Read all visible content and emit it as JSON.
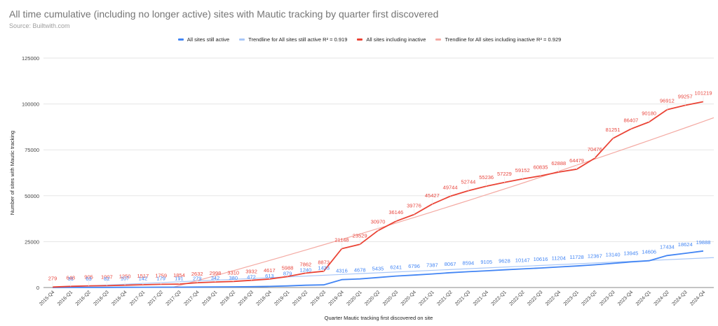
{
  "header": {
    "title": "All time cumulative (including no longer active) sites with Mautic tracking by quarter first discovered",
    "subtitle": "Source: Builtwith.com"
  },
  "legend": [
    {
      "label": "All sites still active",
      "color": "#4285f4"
    },
    {
      "label": "Trendline for All sites still active R² = 0.919",
      "color": "#a9c7f7"
    },
    {
      "label": "All sites including inactive",
      "color": "#ea4335"
    },
    {
      "label": "Trendline for All sites including inactive R² = 0.929",
      "color": "#f4aaa3"
    }
  ],
  "chart_data": {
    "type": "line",
    "title": "All time cumulative (including no longer active) sites with Mautic tracking by quarter first discovered",
    "subtitle": "Source: Builtwith.com",
    "xlabel": "Quarter Mautic tracking first discovered on site",
    "ylabel": "Number of sites with Mautic tracking",
    "ylim": [
      0,
      125000
    ],
    "yticks": [
      0,
      25000,
      50000,
      75000,
      100000,
      125000
    ],
    "grid": true,
    "legend_position": "top",
    "categories": [
      "2015-Q4",
      "2016-Q1",
      "2016-Q2",
      "2016-Q3",
      "2016-Q4",
      "2017-Q1",
      "2017-Q2",
      "2017-Q3",
      "2017-Q4",
      "2018-Q1",
      "2018-Q2",
      "2018-Q3",
      "2018-Q4",
      "2019-Q1",
      "2019-Q2",
      "2019-Q3",
      "2019-Q4",
      "2020-Q1",
      "2020-Q2",
      "2020-Q3",
      "2020-Q4",
      "2021-Q1",
      "2021-Q2",
      "2021-Q3",
      "2021-Q4",
      "2022-Q1",
      "2022-Q2",
      "2022-Q3",
      "2022-Q4",
      "2023-Q1",
      "2023-Q2",
      "2023-Q3",
      "2023-Q4",
      "2024-Q1",
      "2024-Q2",
      "2024-Q3",
      "2024-Q4"
    ],
    "series": [
      {
        "name": "All sites still active",
        "color": "#4285f4",
        "values": [
          9,
          31,
          63,
          82,
          107,
          142,
          179,
          191,
          279,
          342,
          380,
          472,
          613,
          879,
          1240,
          1433,
          4316,
          4678,
          5435,
          6241,
          6796,
          7387,
          8067,
          8594,
          9105,
          9628,
          10147,
          10616,
          11204,
          11728,
          12367,
          13140,
          13945,
          14606,
          17434,
          18624,
          19888
        ]
      },
      {
        "name": "Trendline for All sites still active",
        "r_squared": 0.919,
        "color": "#a9c7f7",
        "type": "linear-trend",
        "start_value": 0,
        "end_value": 16300,
        "extends_to": "right edge"
      },
      {
        "name": "All sites including inactive",
        "color": "#ea4335",
        "values": [
          279,
          648,
          905,
          1007,
          1250,
          1517,
          1759,
          1854,
          2632,
          2998,
          3310,
          3932,
          4617,
          5988,
          7862,
          8873,
          21148,
          23529,
          30970,
          36146,
          39776,
          45427,
          49744,
          52744,
          55236,
          57229,
          59152,
          60835,
          62888,
          64479,
          70476,
          81251,
          86407,
          90180,
          96912,
          99257,
          101219
        ]
      },
      {
        "name": "Trendline for All sites including inactive",
        "r_squared": 0.929,
        "color": "#f4aaa3",
        "type": "polynomial-trend",
        "note": "starts near 2017-Q2 at 0, ends ~92500 at right edge"
      }
    ]
  }
}
